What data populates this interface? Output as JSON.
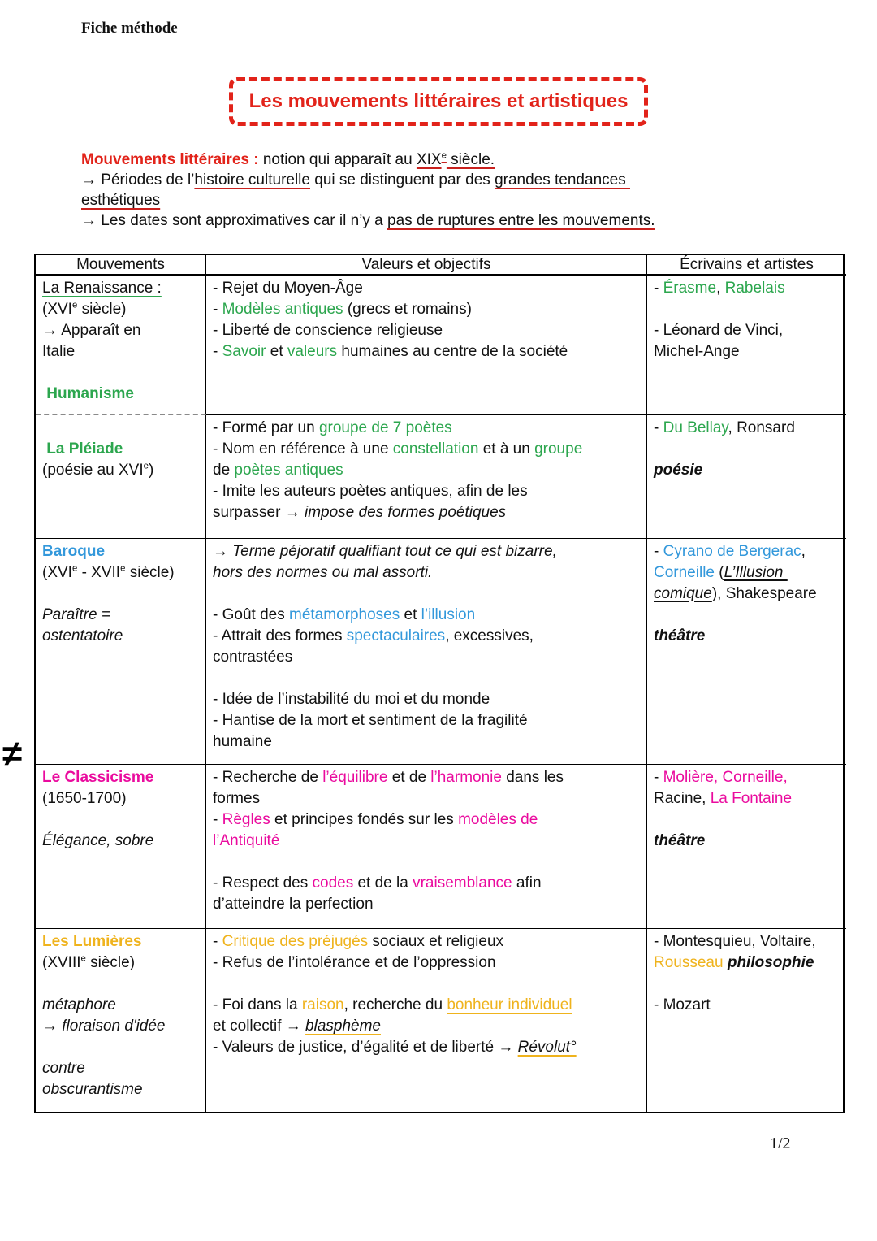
{
  "page": {
    "label": "Fiche méthode",
    "footer": "1/2",
    "margin_note": "≠"
  },
  "title": "Les mouvements littéraires et artistiques",
  "colors": {
    "red": "#e2231a",
    "underline_red": "#c9211e",
    "green": "#2ca64e",
    "blue": "#3398db",
    "magenta": "#ea0b9e",
    "gold": "#efb31d"
  },
  "intro": {
    "lines": [
      [
        {
          "t": "Mouvements littéraires : ",
          "s": "red bold"
        },
        {
          "t": "notion qui apparaît au "
        },
        {
          "t": "XIX",
          "s": "ured"
        },
        {
          "t": "e",
          "s": "sup ured"
        },
        {
          "t": " siècle.",
          "s": "ured"
        }
      ],
      [
        {
          "t": "→ Périodes de l’"
        },
        {
          "t": "histoire culturelle",
          "s": "ured"
        },
        {
          "t": " qui se distinguent par des "
        },
        {
          "t": "grandes tendances ",
          "s": "ured"
        }
      ],
      [
        {
          "t": "esthétiques",
          "s": "ured"
        }
      ],
      [
        {
          "t": "→ Les dates sont approximatives car il n’y a "
        },
        {
          "t": "pas de ruptures entre les mouvements.",
          "s": "ured"
        }
      ]
    ]
  },
  "table": {
    "headers": [
      "Mouvements",
      "Valeurs et objectifs",
      "Écrivains et artistes"
    ],
    "rows": [
      {
        "name": "renaissance",
        "dashed_bottom_first_col": true,
        "cells": [
          {
            "lines": [
              [
                {
                  "t": "La Renaissance :",
                  "s": "ugreen"
                }
              ],
              [
                {
                  "t": "(XVI"
                },
                {
                  "t": "e",
                  "s": "sup"
                },
                {
                  "t": " siècle)"
                }
              ],
              [
                {
                  "t": "→ Apparaît en"
                }
              ],
              [
                {
                  "t": "Italie"
                }
              ],
              [],
              [
                {
                  "t": " Humanisme",
                  "s": "g bold"
                }
              ]
            ]
          },
          {
            "lines": [
              [
                {
                  "t": "- Rejet du Moyen-Âge"
                }
              ],
              [
                {
                  "t": "- "
                },
                {
                  "t": "Modèles antiques",
                  "s": "g"
                },
                {
                  "t": " (grecs et romains)"
                }
              ],
              [
                {
                  "t": "- Liberté de conscience religieuse"
                }
              ],
              [
                {
                  "t": "- "
                },
                {
                  "t": "Savoir",
                  "s": "g"
                },
                {
                  "t": " et "
                },
                {
                  "t": "valeurs",
                  "s": "g"
                },
                {
                  "t": " humaines au centre de la société"
                }
              ]
            ]
          },
          {
            "lines": [
              [
                {
                  "t": "- "
                },
                {
                  "t": "Érasme",
                  "s": "g"
                },
                {
                  "t": ", "
                },
                {
                  "t": "Rabelais",
                  "s": "g"
                }
              ],
              [],
              [
                {
                  "t": "- Léonard de Vinci,"
                }
              ],
              [
                {
                  "t": "Michel-Ange"
                }
              ]
            ]
          }
        ]
      },
      {
        "name": "pleiade",
        "cells": [
          {
            "lines": [
              [],
              [
                {
                  "t": " La Pléiade",
                  "s": "g bold"
                }
              ],
              [
                {
                  "t": "(poésie au XVI"
                },
                {
                  "t": "e",
                  "s": "sup"
                },
                {
                  "t": ")"
                }
              ]
            ]
          },
          {
            "lines": [
              [
                {
                  "t": "- Formé par un "
                },
                {
                  "t": "groupe de 7 poètes",
                  "s": "g"
                }
              ],
              [
                {
                  "t": "- Nom en référence à une "
                },
                {
                  "t": "constellation",
                  "s": "g"
                },
                {
                  "t": " et à un "
                },
                {
                  "t": "groupe",
                  "s": "g"
                }
              ],
              [
                {
                  "t": "de "
                },
                {
                  "t": "poètes antiques",
                  "s": "g"
                }
              ],
              [
                {
                  "t": "- Imite les auteurs poètes antiques, afin de les"
                }
              ],
              [
                {
                  "t": "surpasser → "
                },
                {
                  "t": "impose des formes poétiques",
                  "s": "i"
                }
              ]
            ]
          },
          {
            "lines": [
              [
                {
                  "t": "- "
                },
                {
                  "t": "Du Bellay",
                  "s": "g"
                },
                {
                  "t": ", Ronsard"
                }
              ],
              [],
              [
                {
                  "t": "poésie",
                  "s": "bi"
                }
              ]
            ]
          }
        ]
      },
      {
        "name": "baroque",
        "cells": [
          {
            "lines": [
              [
                {
                  "t": "Baroque",
                  "s": "b bold"
                }
              ],
              [
                {
                  "t": "(XVI"
                },
                {
                  "t": "e",
                  "s": "sup"
                },
                {
                  "t": " - XVII"
                },
                {
                  "t": "e",
                  "s": "sup"
                },
                {
                  "t": " siècle)"
                }
              ],
              [],
              [
                {
                  "t": "Paraître =",
                  "s": "i"
                }
              ],
              [
                {
                  "t": "ostentatoire",
                  "s": "i"
                }
              ]
            ]
          },
          {
            "lines": [
              [
                {
                  "t": "→ Terme péjoratif qualifiant tout ce qui est bizarre,",
                  "s": "i"
                }
              ],
              [
                {
                  "t": "hors des normes ou mal assorti.",
                  "s": "i"
                }
              ],
              [],
              [
                {
                  "t": "- Goût des "
                },
                {
                  "t": "métamorphoses",
                  "s": "b"
                },
                {
                  "t": " et "
                },
                {
                  "t": "l’illusion",
                  "s": "b"
                }
              ],
              [
                {
                  "t": "- Attrait des formes "
                },
                {
                  "t": "spectaculaires",
                  "s": "b"
                },
                {
                  "t": ", excessives,"
                }
              ],
              [
                {
                  "t": "contrastées"
                }
              ],
              [],
              [
                {
                  "t": "- Idée de l’instabilité du moi et du monde"
                }
              ],
              [
                {
                  "t": "- Hantise de la mort et sentiment de la fragilité"
                }
              ],
              [
                {
                  "t": "humaine"
                }
              ]
            ]
          },
          {
            "lines": [
              [
                {
                  "t": "- "
                },
                {
                  "t": "Cyrano de Bergerac",
                  "s": "b"
                },
                {
                  "t": ","
                }
              ],
              [
                {
                  "t": "Corneille",
                  "s": "b"
                },
                {
                  "t": " ("
                },
                {
                  "t": "L’Illusion ",
                  "s": "iu"
                }
              ],
              [
                {
                  "t": "comique",
                  "s": "iu"
                },
                {
                  "t": "), Shakespeare"
                }
              ],
              [],
              [
                {
                  "t": "théâtre",
                  "s": "bi"
                }
              ]
            ]
          }
        ]
      },
      {
        "name": "classicisme",
        "cells": [
          {
            "lines": [
              [
                {
                  "t": "Le Classicisme",
                  "s": "m bold"
                }
              ],
              [
                {
                  "t": "(1650-1700)"
                }
              ],
              [],
              [
                {
                  "t": "Élégance, sobre",
                  "s": "i"
                }
              ]
            ]
          },
          {
            "lines": [
              [
                {
                  "t": "- Recherche de "
                },
                {
                  "t": "l’équilibre",
                  "s": "m"
                },
                {
                  "t": " et de "
                },
                {
                  "t": "l’harmonie",
                  "s": "m"
                },
                {
                  "t": " dans les"
                }
              ],
              [
                {
                  "t": "formes"
                }
              ],
              [
                {
                  "t": "- "
                },
                {
                  "t": "Règles",
                  "s": "m"
                },
                {
                  "t": " et principes fondés sur les "
                },
                {
                  "t": "modèles de",
                  "s": "m"
                }
              ],
              [
                {
                  "t": "l’Antiquité",
                  "s": "m"
                }
              ],
              [],
              [
                {
                  "t": "- Respect des "
                },
                {
                  "t": "codes",
                  "s": "m"
                },
                {
                  "t": " et de la "
                },
                {
                  "t": "vraisemblance",
                  "s": "m"
                },
                {
                  "t": " afin"
                }
              ],
              [
                {
                  "t": "d’atteindre la perfection"
                }
              ]
            ]
          },
          {
            "lines": [
              [
                {
                  "t": "- "
                },
                {
                  "t": "Molière, Corneille,",
                  "s": "m"
                }
              ],
              [
                {
                  "t": "Racine, "
                },
                {
                  "t": "La Fontaine",
                  "s": "m"
                }
              ],
              [],
              [
                {
                  "t": "théâtre",
                  "s": "bi"
                }
              ]
            ]
          }
        ]
      },
      {
        "name": "lumieres",
        "cells": [
          {
            "lines": [
              [
                {
                  "t": "Les Lumières",
                  "s": "y bold"
                }
              ],
              [
                {
                  "t": "(XVIII"
                },
                {
                  "t": "e",
                  "s": "sup"
                },
                {
                  "t": " siècle)"
                }
              ],
              [],
              [
                {
                  "t": "métaphore",
                  "s": "i"
                }
              ],
              [
                {
                  "t": "→ floraison d'idée",
                  "s": "i"
                }
              ],
              [],
              [
                {
                  "t": "contre",
                  "s": "i"
                }
              ],
              [
                {
                  "t": "obscurantisme",
                  "s": "i"
                }
              ]
            ]
          },
          {
            "lines": [
              [
                {
                  "t": "- "
                },
                {
                  "t": "Critique des préjugés",
                  "s": "y"
                },
                {
                  "t": " sociaux et religieux"
                }
              ],
              [
                {
                  "t": "- Refus de l’intolérance et de l’oppression"
                }
              ],
              [],
              [
                {
                  "t": "- Foi dans la "
                },
                {
                  "t": "raison",
                  "s": "y"
                },
                {
                  "t": ", recherche du "
                },
                {
                  "t": "bonheur individuel",
                  "s": "y uy"
                }
              ],
              [
                {
                  "t": "et collectif → "
                },
                {
                  "t": "blasphème",
                  "s": "i uy"
                }
              ],
              [
                {
                  "t": "- Valeurs de justice, d’égalité et de liberté → "
                },
                {
                  "t": "Révolut°",
                  "s": "i uy"
                }
              ]
            ]
          },
          {
            "lines": [
              [
                {
                  "t": "- Montesquieu, Voltaire,"
                }
              ],
              [
                {
                  "t": "Rousseau",
                  "s": "y"
                },
                {
                  "t": " "
                },
                {
                  "t": "philosophie",
                  "s": "bi"
                }
              ],
              [],
              [
                {
                  "t": "- Mozart"
                }
              ]
            ]
          }
        ]
      }
    ]
  }
}
